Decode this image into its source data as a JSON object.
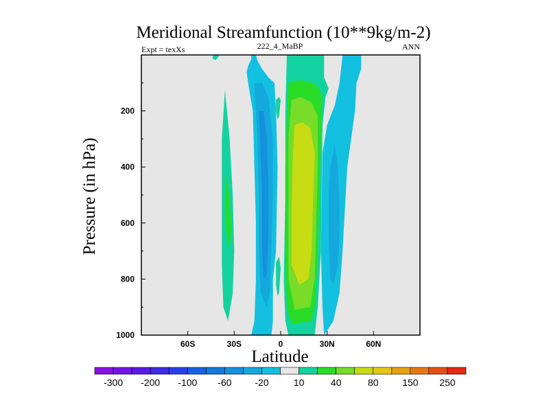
{
  "chart_data": {
    "type": "contour",
    "title": "Meridional Streamfunction (10**9kg/m-2)",
    "left_string": "Expt = texXs",
    "center_string": "222_4_MaBP",
    "right_string": "ANN",
    "xlabel": "Latitude",
    "ylabel": "Pressure (in hPa)",
    "xlim": [
      -90,
      90
    ],
    "ylim": [
      1000,
      0
    ],
    "x_ticks": [
      {
        "value": -60,
        "label": "60S"
      },
      {
        "value": -30,
        "label": "30S"
      },
      {
        "value": 0,
        "label": "0"
      },
      {
        "value": 30,
        "label": "30N"
      },
      {
        "value": 60,
        "label": "60N"
      }
    ],
    "y_ticks": [
      {
        "value": 200,
        "label": "200"
      },
      {
        "value": 400,
        "label": "400"
      },
      {
        "value": 600,
        "label": "600"
      },
      {
        "value": 800,
        "label": "800"
      },
      {
        "value": 1000,
        "label": "1000"
      }
    ],
    "background_color": "#e6e6e6",
    "colorbar": {
      "colors": [
        "#8a10e6",
        "#7414e6",
        "#5a1ae6",
        "#4028e6",
        "#2a40e6",
        "#1a60e6",
        "#1478dc",
        "#1490dc",
        "#14a8dc",
        "#14c0e0",
        "#e6e6e6",
        "#14d2a0",
        "#28dc28",
        "#78dc28",
        "#c8dc14",
        "#e6c814",
        "#e6a014",
        "#e67814",
        "#e65014",
        "#e62814"
      ],
      "labels": [
        "-300",
        "-200",
        "-100",
        "-60",
        "-20",
        "10",
        "40",
        "80",
        "150",
        "250"
      ]
    },
    "regions": [
      {
        "level": 10,
        "points": [
          [
            -43,
            0
          ],
          [
            -40,
            0
          ],
          [
            -40,
            5
          ],
          [
            -41,
            12
          ],
          [
            -42,
            18
          ],
          [
            -44,
            14
          ],
          [
            -44,
            5
          ]
        ]
      },
      {
        "level": 10,
        "points": [
          [
            -36,
            125
          ],
          [
            -33,
            300
          ],
          [
            -31,
            500
          ],
          [
            -30,
            700
          ],
          [
            -31,
            850
          ],
          [
            -34,
            950
          ],
          [
            -37,
            900
          ],
          [
            -38,
            750
          ],
          [
            -38,
            550
          ],
          [
            -38,
            300
          ]
        ]
      },
      {
        "level": 40,
        "points": [
          [
            -35,
            430
          ],
          [
            -33,
            520
          ],
          [
            -32,
            620
          ],
          [
            -33,
            700
          ],
          [
            -35,
            640
          ],
          [
            -36,
            530
          ]
        ]
      },
      {
        "level": -20,
        "points": [
          [
            -23,
            0
          ],
          [
            -19,
            0
          ],
          [
            -19,
            15
          ],
          [
            -21,
            40
          ],
          [
            -22,
            60
          ],
          [
            -21,
            100
          ],
          [
            -18,
            200
          ],
          [
            -17,
            400
          ],
          [
            -16,
            600
          ],
          [
            -16,
            800
          ],
          [
            -17,
            950
          ],
          [
            -19,
            1000
          ],
          [
            -6,
            1000
          ],
          [
            -5,
            950
          ],
          [
            -5,
            800
          ],
          [
            -3,
            700
          ],
          [
            -2,
            400
          ],
          [
            -3,
            200
          ],
          [
            -4,
            100
          ],
          [
            -8,
            80
          ],
          [
            -12,
            50
          ],
          [
            -15,
            20
          ],
          [
            -16,
            0
          ]
        ]
      },
      {
        "level": -60,
        "points": [
          [
            -17,
            100
          ],
          [
            -15,
            300
          ],
          [
            -14,
            500
          ],
          [
            -14,
            700
          ],
          [
            -13,
            850
          ],
          [
            -9,
            900
          ],
          [
            -7,
            850
          ],
          [
            -6,
            700
          ],
          [
            -5,
            500
          ],
          [
            -5,
            300
          ],
          [
            -8,
            150
          ],
          [
            -12,
            100
          ]
        ]
      },
      {
        "level": -100,
        "points": [
          [
            -14,
            200
          ],
          [
            -13,
            350
          ],
          [
            -12,
            500
          ],
          [
            -12,
            700
          ],
          [
            -11,
            800
          ],
          [
            -9,
            780
          ],
          [
            -8,
            650
          ],
          [
            -8,
            450
          ],
          [
            -9,
            300
          ],
          [
            -11,
            200
          ]
        ]
      },
      {
        "level": 10,
        "points": [
          [
            -3,
            160
          ],
          [
            -1,
            150
          ],
          [
            0,
            160
          ],
          [
            -1,
            220
          ],
          [
            -2,
            230
          ],
          [
            -3,
            200
          ]
        ]
      },
      {
        "level": 10,
        "points": [
          [
            -3,
            740
          ],
          [
            -1,
            720
          ],
          [
            0,
            760
          ],
          [
            -1,
            850
          ],
          [
            -2,
            860
          ],
          [
            -3,
            820
          ]
        ]
      },
      {
        "level": 10,
        "points": [
          [
            4,
            0
          ],
          [
            28,
            0
          ],
          [
            28,
            80
          ],
          [
            31,
            120
          ],
          [
            29,
            150
          ],
          [
            27,
            250
          ],
          [
            26,
            700
          ],
          [
            24,
            900
          ],
          [
            22,
            1000
          ],
          [
            5,
            1000
          ],
          [
            3,
            950
          ],
          [
            2,
            800
          ],
          [
            3,
            500
          ],
          [
            3,
            200
          ]
        ]
      },
      {
        "level": 40,
        "points": [
          [
            5,
            100
          ],
          [
            12,
            90
          ],
          [
            18,
            95
          ],
          [
            24,
            110
          ],
          [
            27,
            150
          ],
          [
            26,
            300
          ],
          [
            25,
            500
          ],
          [
            24,
            700
          ],
          [
            22,
            900
          ],
          [
            20,
            950
          ],
          [
            7,
            960
          ],
          [
            4,
            900
          ],
          [
            3,
            700
          ],
          [
            3,
            400
          ],
          [
            4,
            200
          ]
        ]
      },
      {
        "level": 80,
        "points": [
          [
            7,
            160
          ],
          [
            13,
            150
          ],
          [
            20,
            170
          ],
          [
            24,
            220
          ],
          [
            24,
            400
          ],
          [
            23,
            600
          ],
          [
            22,
            800
          ],
          [
            19,
            900
          ],
          [
            9,
            910
          ],
          [
            5,
            800
          ],
          [
            5,
            500
          ],
          [
            5,
            300
          ]
        ]
      },
      {
        "level": 150,
        "points": [
          [
            9,
            250
          ],
          [
            14,
            240
          ],
          [
            19,
            260
          ],
          [
            22,
            350
          ],
          [
            21,
            500
          ],
          [
            20,
            700
          ],
          [
            18,
            800
          ],
          [
            12,
            820
          ],
          [
            7,
            750
          ],
          [
            7,
            550
          ],
          [
            8,
            350
          ]
        ]
      },
      {
        "level": -20,
        "points": [
          [
            40,
            0
          ],
          [
            52,
            0
          ],
          [
            52,
            50
          ],
          [
            49,
            100
          ],
          [
            48,
            200
          ],
          [
            43,
            400
          ],
          [
            40,
            700
          ],
          [
            38,
            850
          ],
          [
            34,
            950
          ],
          [
            28,
            1000
          ],
          [
            27,
            900
          ],
          [
            26,
            700
          ],
          [
            27,
            350
          ],
          [
            30,
            250
          ],
          [
            35,
            180
          ],
          [
            38,
            100
          ]
        ]
      },
      {
        "level": -60,
        "points": [
          [
            35,
            320
          ],
          [
            37,
            400
          ],
          [
            38,
            550
          ],
          [
            38,
            650
          ],
          [
            37,
            750
          ],
          [
            34,
            820
          ],
          [
            32,
            800
          ],
          [
            31,
            650
          ],
          [
            31,
            500
          ],
          [
            32,
            400
          ]
        ]
      }
    ]
  }
}
